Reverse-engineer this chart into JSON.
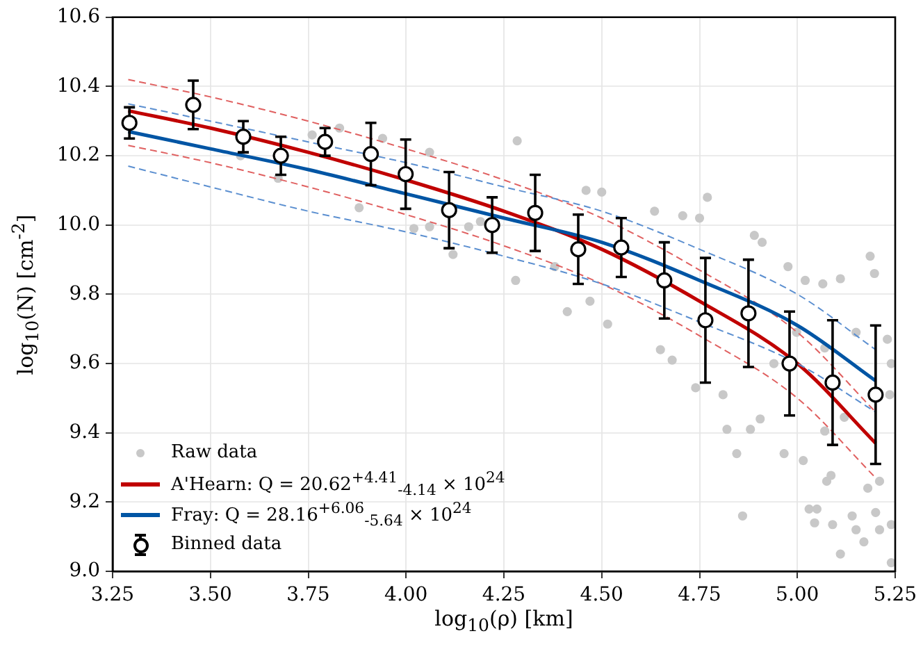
{
  "chart_data": {
    "type": "scatter",
    "xlabel": "log$_{10}$(ρ) [km]",
    "ylabel": "log$_{10}$(N) [cm$^{-2}$]",
    "xlim": [
      3.25,
      5.25
    ],
    "xticks": [
      3.25,
      {
        "value": 3.5,
        "label": "3.50"
      },
      3.75,
      {
        "value": 4,
        "label": "4.00"
      },
      4.25,
      {
        "value": 4.5,
        "label": "4.50"
      },
      4.75,
      {
        "value": 5,
        "label": "5.00"
      },
      5.25
    ],
    "ylim": [
      9.0,
      10.6
    ],
    "yticks": [
      {
        "value": 9,
        "label": "9.0"
      },
      9.2,
      9.4,
      9.6,
      9.8,
      {
        "value": 10,
        "label": "10.0"
      },
      10.2,
      10.4,
      10.6
    ],
    "grid": true,
    "legend": "bottom left",
    "series": [
      {
        "name": "Raw data",
        "marker": "circle",
        "color": "#c8c8c8",
        "x": [
          3.577,
          3.673,
          3.76,
          3.83,
          3.88,
          3.94,
          4.02,
          4.06,
          4.06,
          4.12,
          4.16,
          4.19,
          4.284,
          4.28,
          4.46,
          4.5,
          4.635,
          4.707,
          4.75,
          4.77,
          4.89,
          4.91,
          4.976,
          5.02,
          5.065,
          5.11,
          5.186,
          5.197,
          4.38,
          4.47,
          4.412,
          4.515,
          4.65,
          4.68,
          4.74,
          4.82,
          4.845,
          4.86,
          4.88,
          4.966,
          5.015,
          5.03,
          5.05,
          5.044,
          5.075,
          5.086,
          5.09,
          5.11,
          5.14,
          5.15,
          5.17,
          5.18,
          5.2,
          5.21,
          5.21,
          5.24,
          5.24,
          5.236,
          5.24,
          5.23,
          5.15,
          5.07,
          4.998,
          4.94,
          4.905,
          4.81,
          5.07,
          5.12
        ],
        "values": [
          10.2,
          10.135,
          10.26,
          10.28,
          10.05,
          10.25,
          9.99,
          9.995,
          10.21,
          9.915,
          9.995,
          10.01,
          10.243,
          9.84,
          10.1,
          10.095,
          10.04,
          10.027,
          10.02,
          10.08,
          9.97,
          9.95,
          9.88,
          9.84,
          9.83,
          9.845,
          9.91,
          9.86,
          9.88,
          9.78,
          9.75,
          9.714,
          9.64,
          9.61,
          9.53,
          9.41,
          9.34,
          9.16,
          9.41,
          9.34,
          9.32,
          9.18,
          9.18,
          9.14,
          9.26,
          9.277,
          9.135,
          9.05,
          9.16,
          9.12,
          9.085,
          9.24,
          9.17,
          9.12,
          9.26,
          9.135,
          9.025,
          9.51,
          9.6,
          9.67,
          9.69,
          9.645,
          9.69,
          9.6,
          9.44,
          9.51,
          9.405,
          9.445
        ]
      },
      {
        "name": "A'Hearn: Q = 20.62$^{+4.41}$$_{-4.14}$ × 10$^{24}$",
        "type": "line",
        "color": "#c00000",
        "line_style": "solid",
        "x": [
          3.29,
          3.5,
          3.75,
          4.0,
          4.25,
          4.5,
          4.75,
          5.0,
          5.2
        ],
        "values": [
          10.33,
          10.28,
          10.21,
          10.13,
          10.04,
          9.93,
          9.78,
          9.6,
          9.37
        ]
      },
      {
        "type": "line",
        "color": "#e06060",
        "line_style": "dashed",
        "x": [
          3.29,
          3.5,
          3.75,
          4.0,
          4.25,
          4.5,
          4.75,
          5.0,
          5.2
        ],
        "values": [
          10.42,
          10.37,
          10.3,
          10.22,
          10.13,
          10.02,
          9.87,
          9.69,
          9.46
        ]
      },
      {
        "type": "line",
        "color": "#e06060",
        "line_style": "dashed",
        "x": [
          3.29,
          3.5,
          3.75,
          4.0,
          4.25,
          4.5,
          4.75,
          5.0,
          5.2
        ],
        "values": [
          10.23,
          10.18,
          10.11,
          10.03,
          9.94,
          9.83,
          9.68,
          9.5,
          9.27
        ]
      },
      {
        "name": "Fray: Q = 28.16$^{+6.06}$$_{-5.64}$ × 10$^{24}$",
        "type": "line",
        "color": "#0055a4",
        "line_style": "solid",
        "x": [
          3.29,
          3.5,
          3.75,
          4.0,
          4.25,
          4.5,
          4.75,
          5.0,
          5.2
        ],
        "values": [
          10.27,
          10.22,
          10.16,
          10.09,
          10.02,
          9.95,
          9.84,
          9.71,
          9.55
        ]
      },
      {
        "type": "line",
        "color": "#5b8fd0",
        "line_style": "dashed",
        "x": [
          3.29,
          3.5,
          3.75,
          4.0,
          4.25,
          4.5,
          4.75,
          5.0,
          5.2
        ],
        "values": [
          10.35,
          10.3,
          10.24,
          10.18,
          10.11,
          10.04,
          9.93,
          9.8,
          9.64
        ]
      },
      {
        "type": "line",
        "color": "#5b8fd0",
        "line_style": "dashed",
        "x": [
          3.29,
          3.5,
          3.75,
          4.0,
          4.25,
          4.5,
          4.75,
          5.0,
          5.2
        ],
        "values": [
          10.17,
          10.11,
          10.04,
          9.98,
          9.91,
          9.83,
          9.72,
          9.6,
          9.46
        ]
      },
      {
        "name": "Binned data",
        "marker": "circle",
        "color": "#000000",
        "x": [
          3.293,
          3.456,
          3.584,
          3.68,
          3.793,
          3.91,
          3.999,
          4.11,
          4.22,
          4.33,
          4.44,
          4.55,
          4.66,
          4.765,
          4.875,
          4.98,
          5.09,
          5.2
        ],
        "values": [
          10.295,
          10.347,
          10.255,
          10.2,
          10.24,
          10.205,
          10.147,
          10.043,
          10.0,
          10.035,
          9.93,
          9.935,
          9.84,
          9.725,
          9.745,
          9.6,
          9.545,
          9.51
        ],
        "errors": [
          0.045,
          0.07,
          0.045,
          0.055,
          0.04,
          0.09,
          0.1,
          0.11,
          0.08,
          0.11,
          0.1,
          0.085,
          0.11,
          0.18,
          0.155,
          0.15,
          0.18,
          0.2
        ]
      }
    ]
  }
}
